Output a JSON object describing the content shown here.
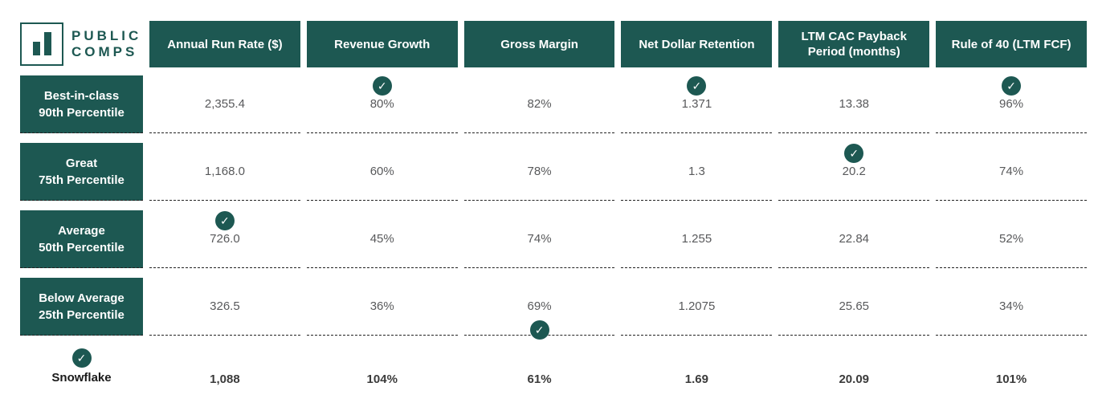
{
  "brand": {
    "line1": "PUBLIC",
    "line2": "COMPS",
    "logo_icon": "bar-chart-icon"
  },
  "colors": {
    "teal": "#1d5852",
    "value_text": "#58595b",
    "bold_text": "#3b3b3b",
    "separator": "#222222"
  },
  "checkmark_glyph": "✓",
  "columns": [
    {
      "label": "Annual Run Rate ($)"
    },
    {
      "label": "Revenue Growth"
    },
    {
      "label": "Gross Margin"
    },
    {
      "label": "Net Dollar Retention"
    },
    {
      "label": "LTM CAC Payback Period (months)"
    },
    {
      "label": "Rule of 40 (LTM FCF)"
    }
  ],
  "rows": [
    {
      "label_line1": "Best-in-class",
      "label_line2": "90th Percentile",
      "cells": [
        {
          "value": "2,355.4"
        },
        {
          "value": "80%",
          "check_above": true
        },
        {
          "value": "82%"
        },
        {
          "value": "1.371",
          "check_above": true
        },
        {
          "value": "13.38"
        },
        {
          "value": "96%",
          "check_above": true
        }
      ]
    },
    {
      "label_line1": "Great",
      "label_line2": "75th Percentile",
      "cells": [
        {
          "value": "1,168.0"
        },
        {
          "value": "60%"
        },
        {
          "value": "78%"
        },
        {
          "value": "1.3"
        },
        {
          "value": "20.2",
          "check_above": true
        },
        {
          "value": "74%"
        }
      ]
    },
    {
      "label_line1": "Average",
      "label_line2": "50th Percentile",
      "cells": [
        {
          "value": "726.0",
          "check_above": true
        },
        {
          "value": "45%"
        },
        {
          "value": "74%"
        },
        {
          "value": "1.255"
        },
        {
          "value": "22.84"
        },
        {
          "value": "52%"
        }
      ]
    },
    {
      "label_line1": "Below Average",
      "label_line2": "25th Percentile",
      "cells": [
        {
          "value": "326.5"
        },
        {
          "value": "36%"
        },
        {
          "value": "69%",
          "check_below": true
        },
        {
          "value": "1.2075"
        },
        {
          "value": "25.65"
        },
        {
          "value": "34%"
        }
      ]
    }
  ],
  "company_row": {
    "label": "Snowflake",
    "check_above": true,
    "values": [
      "1,088",
      "104%",
      "61%",
      "1.69",
      "20.09",
      "101%"
    ]
  },
  "chart_data": {
    "type": "table",
    "columns": [
      "Annual Run Rate ($)",
      "Revenue Growth",
      "Gross Margin",
      "Net Dollar Retention",
      "LTM CAC Payback Period (months)",
      "Rule of 40 (LTM FCF)"
    ],
    "rows": [
      {
        "label": "Best-in-class 90th Percentile",
        "values": [
          2355.4,
          "80%",
          "82%",
          1.371,
          13.38,
          "96%"
        ]
      },
      {
        "label": "Great 75th Percentile",
        "values": [
          1168.0,
          "60%",
          "78%",
          1.3,
          20.2,
          "74%"
        ]
      },
      {
        "label": "Average 50th Percentile",
        "values": [
          726.0,
          "45%",
          "74%",
          1.255,
          22.84,
          "52%"
        ]
      },
      {
        "label": "Below Average 25th Percentile",
        "values": [
          326.5,
          "36%",
          "69%",
          1.2075,
          25.65,
          "34%"
        ]
      },
      {
        "label": "Snowflake",
        "values": [
          1088,
          "104%",
          "61%",
          1.69,
          20.09,
          "101%"
        ]
      }
    ],
    "checkmarks": [
      {
        "row": "Average 50th Percentile",
        "column": "Annual Run Rate ($)",
        "position": "above"
      },
      {
        "row": "Best-in-class 90th Percentile",
        "column": "Revenue Growth",
        "position": "above"
      },
      {
        "row": "Below Average 25th Percentile",
        "column": "Gross Margin",
        "position": "below"
      },
      {
        "row": "Best-in-class 90th Percentile",
        "column": "Net Dollar Retention",
        "position": "above"
      },
      {
        "row": "Great 75th Percentile",
        "column": "LTM CAC Payback Period (months)",
        "position": "above"
      },
      {
        "row": "Best-in-class 90th Percentile",
        "column": "Rule of 40 (LTM FCF)",
        "position": "above"
      },
      {
        "row": "Snowflake",
        "column": "row-label",
        "position": "above"
      }
    ],
    "legend_position": "none",
    "grid": "dashed row separators"
  }
}
